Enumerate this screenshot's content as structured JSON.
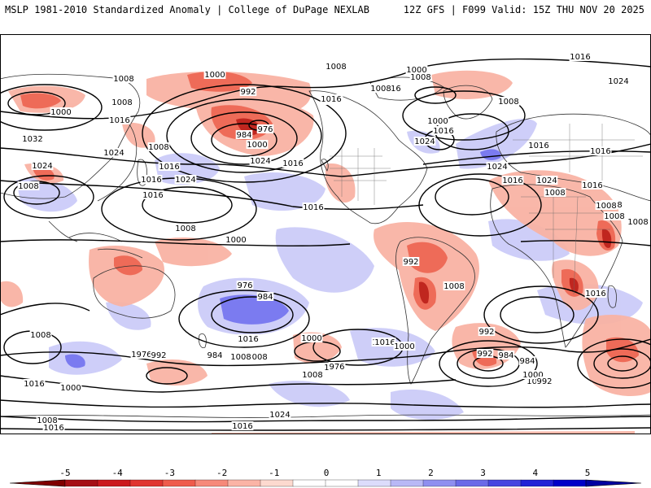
{
  "header": {
    "left": "MSLP 1981-2010 Standardized Anomaly | College of DuPage NEXLAB",
    "right": "12Z GFS | F099 Valid: 15Z THU NOV 20 2025"
  },
  "contour_labels": [
    {
      "text": "1000"
    },
    {
      "text": "992"
    },
    {
      "text": "984"
    },
    {
      "text": "976"
    },
    {
      "text": "1000"
    },
    {
      "text": "1008"
    },
    {
      "text": "1008"
    },
    {
      "text": "1000"
    },
    {
      "text": "1016"
    },
    {
      "text": "1032"
    },
    {
      "text": "1024"
    },
    {
      "text": "1024"
    },
    {
      "text": "1016"
    },
    {
      "text": "1008"
    },
    {
      "text": "1008"
    },
    {
      "text": "1016"
    },
    {
      "text": "1024"
    },
    {
      "text": "1016"
    },
    {
      "text": "1024"
    },
    {
      "text": "1016"
    },
    {
      "text": "1008"
    },
    {
      "text": "1008"
    },
    {
      "text": "1016"
    },
    {
      "text": "1000"
    },
    {
      "text": "1008"
    },
    {
      "text": "1016"
    },
    {
      "text": "1008"
    },
    {
      "text": "1016"
    },
    {
      "text": "1000"
    },
    {
      "text": "1016"
    },
    {
      "text": "1024"
    },
    {
      "text": "1024"
    },
    {
      "text": "1016"
    },
    {
      "text": "1024"
    },
    {
      "text": "1016"
    },
    {
      "text": "1008"
    },
    {
      "text": "1008"
    },
    {
      "text": "1008"
    },
    {
      "text": "1008"
    },
    {
      "text": "1016"
    },
    {
      "text": "1008"
    },
    {
      "text": "1016"
    },
    {
      "text": "1024"
    },
    {
      "text": "1016"
    },
    {
      "text": "1008"
    },
    {
      "text": "1016"
    },
    {
      "text": "1000"
    },
    {
      "text": "992"
    },
    {
      "text": "1008"
    },
    {
      "text": "976"
    },
    {
      "text": "984"
    },
    {
      "text": "1000"
    },
    {
      "text": "1008"
    },
    {
      "text": "1016"
    },
    {
      "text": "1008"
    },
    {
      "text": "1008"
    },
    {
      "text": "992"
    },
    {
      "text": "984"
    },
    {
      "text": "1000"
    },
    {
      "text": "992"
    },
    {
      "text": "984"
    },
    {
      "text": "1000"
    },
    {
      "text": "992"
    },
    {
      "text": "1016"
    },
    {
      "text": "1024"
    },
    {
      "text": "1016"
    },
    {
      "text": "1000"
    },
    {
      "text": "976"
    },
    {
      "text": "1000"
    },
    {
      "text": "1008"
    },
    {
      "text": "1016"
    },
    {
      "text": "1000"
    },
    {
      "text": "976"
    },
    {
      "text": "992"
    },
    {
      "text": "984"
    },
    {
      "text": "1008"
    },
    {
      "text": "1008"
    },
    {
      "text": "1024"
    },
    {
      "text": "1016"
    },
    {
      "text": "1008"
    },
    {
      "text": "1016"
    }
  ],
  "colorbar": {
    "ticks": [
      "-5",
      "-4",
      "-3",
      "-2",
      "-1",
      "0",
      "1",
      "2",
      "3",
      "4",
      "5"
    ],
    "colors": [
      "#a50f15",
      "#cb181d",
      "#e03530",
      "#ef5b4c",
      "#f6897a",
      "#fbb4a6",
      "#fdd9cf",
      "#ffffff",
      "#ffffff",
      "#dcdcfb",
      "#b8b8f6",
      "#8f8ff0",
      "#6a6ae8",
      "#4646e0",
      "#2222d6",
      "#0000c8"
    ],
    "end_low": "#7f0000",
    "end_high": "#0000a0"
  },
  "icons": [
    "colorbar-left-arrow-icon",
    "colorbar-right-arrow-icon"
  ]
}
